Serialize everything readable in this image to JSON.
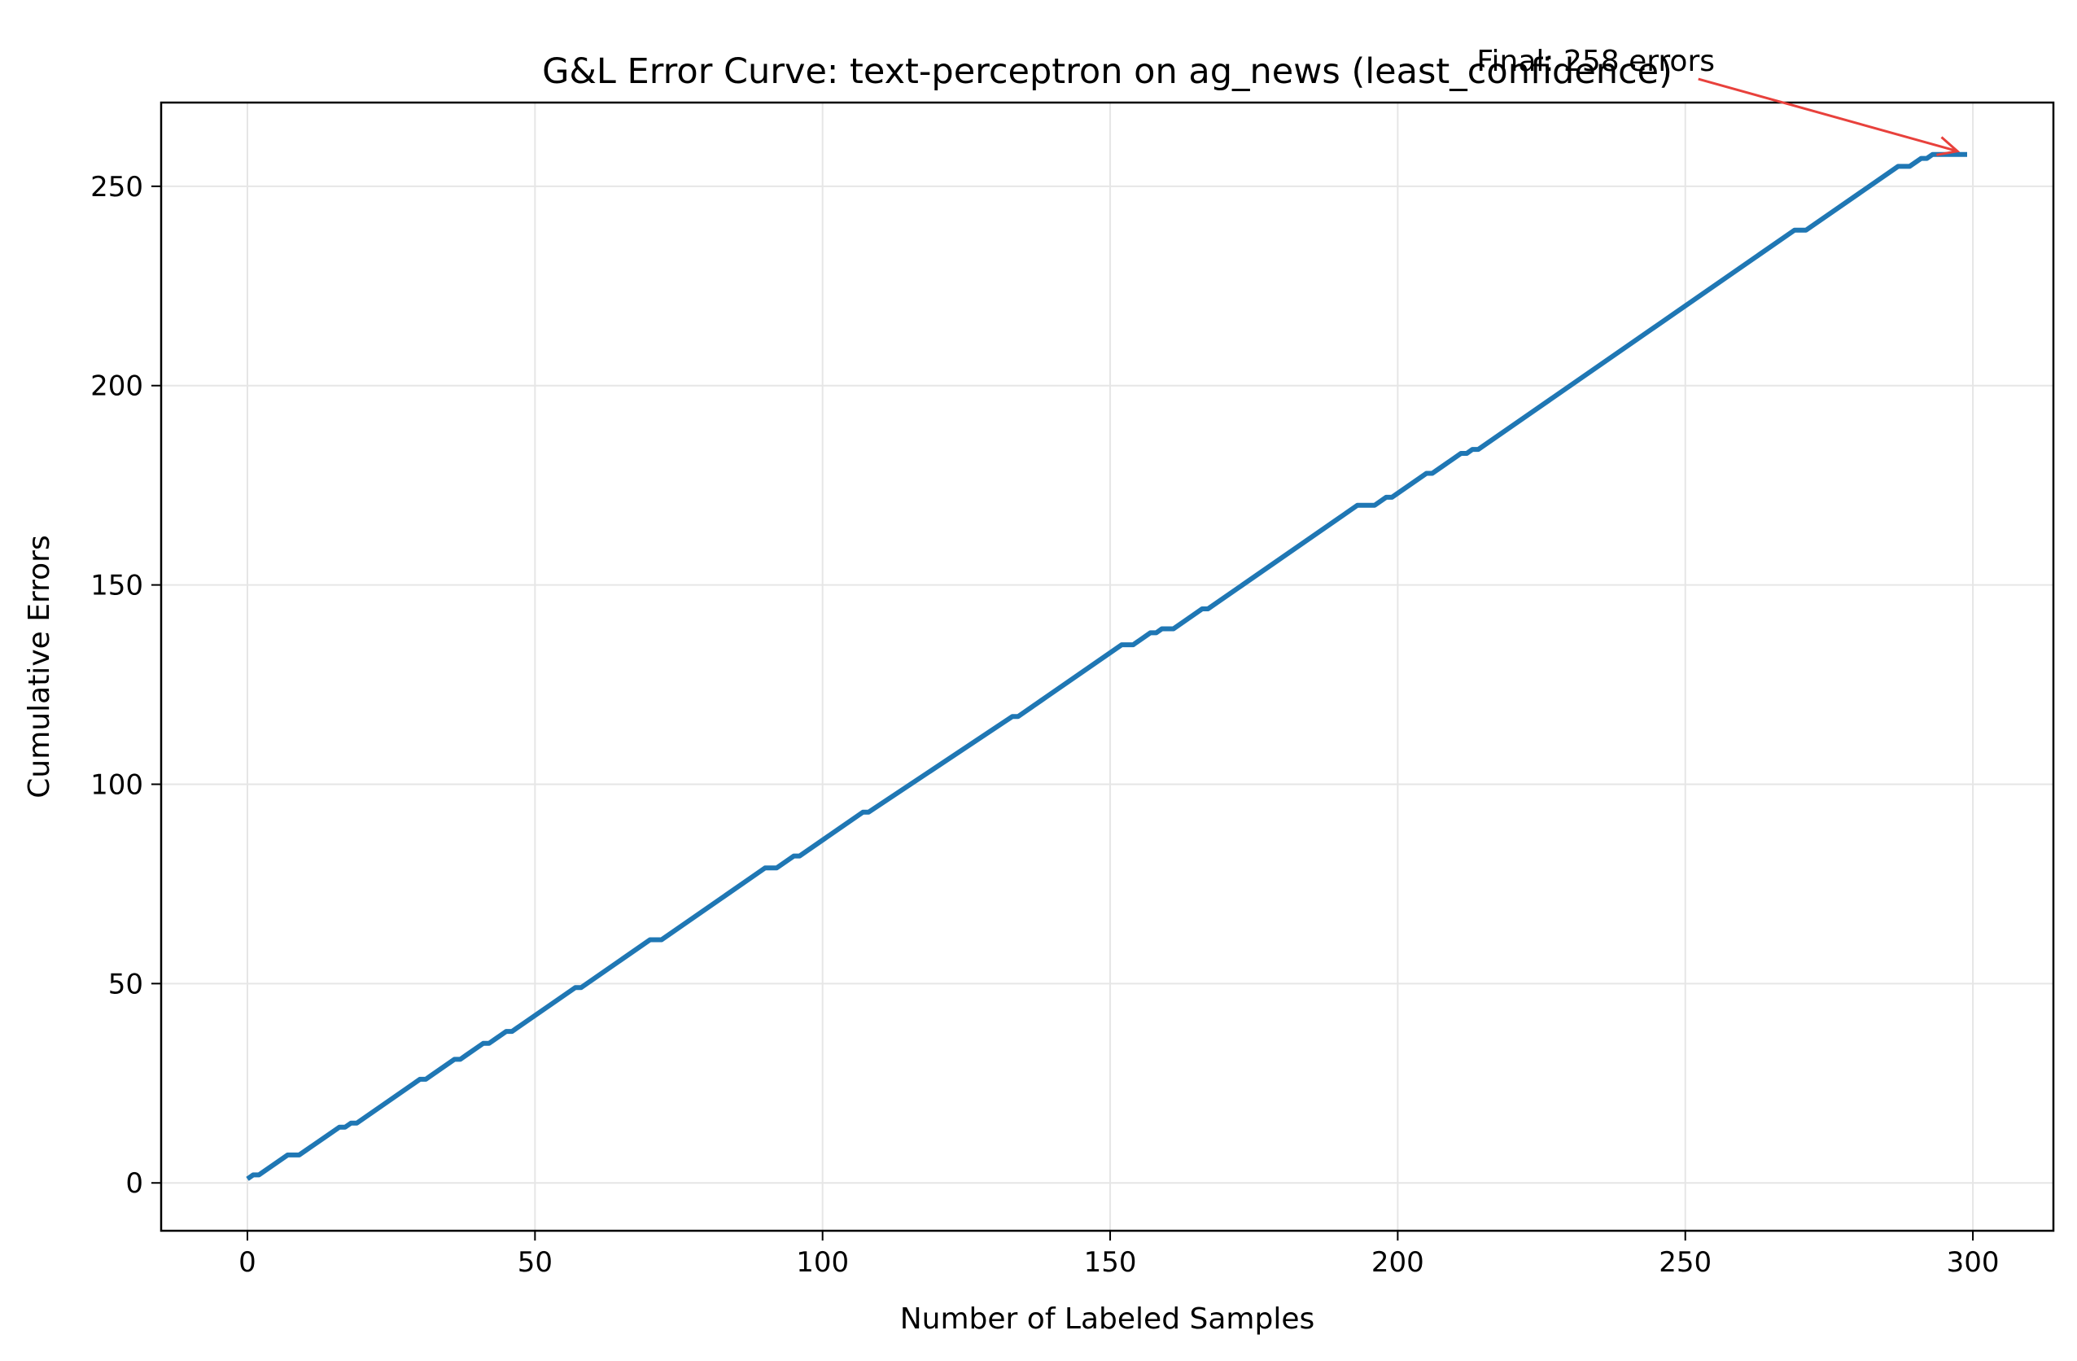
{
  "chart_data": {
    "type": "line",
    "title": "G&L Error Curve: text-perceptron on ag_news (least_confidence)",
    "xlabel": "Number of Labeled Samples",
    "ylabel": "Cumulative Errors",
    "xlim": [
      -15,
      314
    ],
    "ylim": [
      -12,
      271
    ],
    "xticks": [
      0,
      50,
      100,
      150,
      200,
      250,
      300
    ],
    "yticks": [
      0,
      50,
      100,
      150,
      200,
      250
    ],
    "grid": true,
    "colors": {
      "line": "#1f77b4",
      "annotation": "#e8413c",
      "grid": "#e6e6e6"
    },
    "series": [
      {
        "x": [
          0,
          1,
          2,
          7,
          9,
          16,
          17,
          18,
          19,
          30,
          31,
          32,
          36,
          37,
          38,
          41,
          42,
          43,
          45,
          46,
          57,
          58,
          70,
          72,
          90,
          92,
          95,
          96,
          107,
          108,
          133,
          134,
          138,
          139,
          152,
          154,
          157,
          158,
          159,
          161,
          166,
          167,
          193,
          196,
          198,
          199,
          205,
          206,
          211,
          212,
          213,
          214,
          269,
          271,
          287,
          289,
          291,
          292,
          293,
          299
        ],
        "y": [
          1,
          2,
          2,
          7,
          7,
          14,
          14,
          15,
          15,
          26,
          26,
          27,
          31,
          31,
          32,
          35,
          35,
          36,
          38,
          38,
          49,
          49,
          61,
          61,
          79,
          79,
          82,
          82,
          93,
          93,
          117,
          117,
          121,
          122,
          135,
          135,
          138,
          138,
          139,
          139,
          144,
          144,
          170,
          170,
          172,
          172,
          178,
          178,
          183,
          183,
          184,
          184,
          239,
          239,
          255,
          255,
          257,
          257,
          258,
          258
        ]
      }
    ],
    "annotation": {
      "text": "Final: 258 errors",
      "x": 299,
      "y": 258,
      "text_x": 250,
      "text_y": 281
    }
  }
}
